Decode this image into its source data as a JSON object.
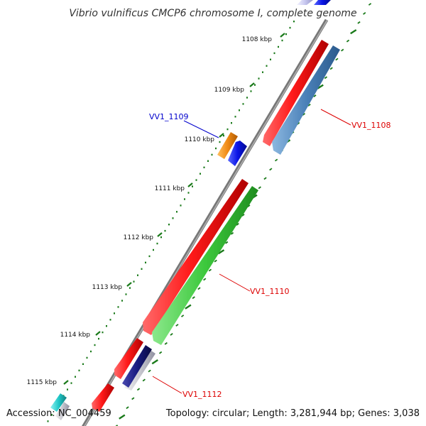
{
  "title": "Vibrio vulnificus CMCP6 chromosome I, complete genome",
  "footer": {
    "accession": "Accession: NC_004459",
    "summary": "Topology: circular; Length: 3,281,944 bp; Genes: 3,038"
  },
  "colors": {
    "backbone": "#888888",
    "ruler": "#1a7a1a",
    "label_red": "#dd0000",
    "label_blue": "#0000cc"
  },
  "ruler": {
    "ticks": [
      {
        "label": "1108 kbp",
        "kbp": 1108
      },
      {
        "label": "1109 kbp",
        "kbp": 1109
      },
      {
        "label": "1110 kbp",
        "kbp": 1110
      },
      {
        "label": "1111 kbp",
        "kbp": 1111
      },
      {
        "label": "1112 kbp",
        "kbp": 1112
      },
      {
        "label": "1113 kbp",
        "kbp": 1113
      },
      {
        "label": "1114 kbp",
        "kbp": 1114
      },
      {
        "label": "1115 kbp",
        "kbp": 1115
      }
    ]
  },
  "genes": [
    {
      "id": "VV1_1108",
      "label": "VV1_1108",
      "color": "#e8141a",
      "strand": "+"
    },
    {
      "id": "VV1_1108_cds",
      "label": "",
      "color": "#4a80b8",
      "strand": "+"
    },
    {
      "id": "VV1_1109",
      "label": "VV1_1109",
      "color": "#0a14e6",
      "strand": "+"
    },
    {
      "id": "VV1_1109_up",
      "label": "",
      "color": "#f08a14",
      "strand": "-"
    },
    {
      "id": "VV1_1110",
      "label": "VV1_1110",
      "color": "#e8141a",
      "strand": "-"
    },
    {
      "id": "VV1_1110_cds",
      "label": "",
      "color": "#3cc83c",
      "strand": "-"
    },
    {
      "id": "VV1_1112",
      "label": "VV1_1112",
      "color": "#e8141a",
      "strand": "-"
    },
    {
      "id": "VV1_1112_cds",
      "label": "",
      "color": "#181a80",
      "strand": "-"
    },
    {
      "id": "VV1_1113",
      "label": "",
      "color": "#e8141a",
      "strand": "-"
    },
    {
      "id": "VV1_1114",
      "label": "",
      "color": "#20c8c8",
      "strand": "-"
    },
    {
      "id": "VV1_1107",
      "label": "",
      "color": "#0a14e6",
      "strand": "+"
    }
  ]
}
